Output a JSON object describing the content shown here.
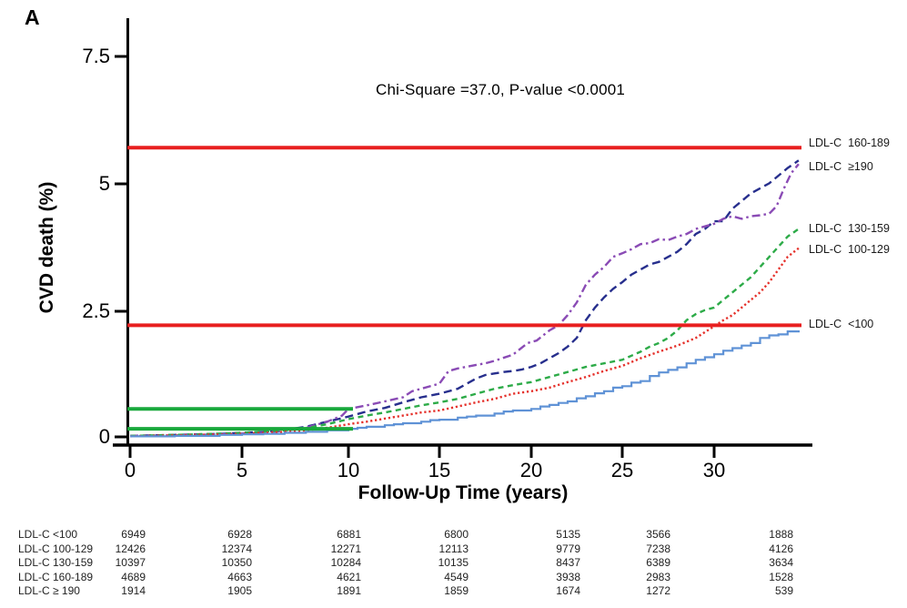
{
  "panel_label": "A",
  "annotation": "Chi-Square =37.0, P-value <0.0001",
  "axes": {
    "y": {
      "title": "CVD death (%)",
      "ticks": [
        "7.5",
        "5",
        "2.5",
        "0"
      ],
      "tick_values": [
        7.5,
        5,
        2.5,
        0
      ]
    },
    "x": {
      "title": "Follow-Up Time (years)",
      "ticks": [
        "0",
        "5",
        "10",
        "15",
        "20",
        "25",
        "30"
      ],
      "tick_values": [
        0,
        5,
        10,
        15,
        20,
        25,
        30
      ]
    }
  },
  "curve_end_labels": [
    "LDL-C  160-189",
    "LDL-C  ≥190",
    "LDL-C  130-159",
    "LDL-C  100-129",
    "LDL-C  <100"
  ],
  "chart_data": {
    "type": "line",
    "title": "",
    "xlabel": "Follow-Up Time (years)",
    "ylabel": "CVD death (%)",
    "ylim": [
      0,
      7.5
    ],
    "x_ticks": [
      0,
      5,
      10,
      15,
      20,
      25,
      30
    ],
    "grid": false,
    "legend_position": "right-of-curve-ends",
    "annotation": "Chi-Square =37.0, P-value <0.0001",
    "series": [
      {
        "name": "LDL-C 160-189",
        "color": "#272f8d",
        "style": "dashed",
        "step": false,
        "points": [
          [
            0,
            0.02
          ],
          [
            2,
            0.04
          ],
          [
            4,
            0.06
          ],
          [
            6,
            0.1
          ],
          [
            7,
            0.14
          ],
          [
            8,
            0.2
          ],
          [
            9,
            0.3
          ],
          [
            10,
            0.4
          ],
          [
            11,
            0.5
          ],
          [
            12,
            0.57
          ],
          [
            13,
            0.68
          ],
          [
            14,
            0.78
          ],
          [
            15,
            0.85
          ],
          [
            16,
            0.95
          ],
          [
            16.5,
            1.05
          ],
          [
            17,
            1.15
          ],
          [
            17.5,
            1.22
          ],
          [
            18,
            1.25
          ],
          [
            18.5,
            1.28
          ],
          [
            19,
            1.3
          ],
          [
            19.5,
            1.33
          ],
          [
            20,
            1.38
          ],
          [
            20.5,
            1.45
          ],
          [
            21,
            1.55
          ],
          [
            21.5,
            1.65
          ],
          [
            22,
            1.78
          ],
          [
            22.5,
            1.95
          ],
          [
            23,
            2.3
          ],
          [
            23.5,
            2.55
          ],
          [
            24,
            2.75
          ],
          [
            24.5,
            2.92
          ],
          [
            25,
            3.05
          ],
          [
            25.5,
            3.2
          ],
          [
            26,
            3.3
          ],
          [
            26.5,
            3.4
          ],
          [
            27,
            3.45
          ],
          [
            27.5,
            3.55
          ],
          [
            28,
            3.65
          ],
          [
            28.5,
            3.8
          ],
          [
            29,
            4.0
          ],
          [
            29.5,
            4.1
          ],
          [
            30,
            4.25
          ],
          [
            30.5,
            4.25
          ],
          [
            31,
            4.5
          ],
          [
            31.5,
            4.65
          ],
          [
            32,
            4.8
          ],
          [
            32.5,
            4.9
          ],
          [
            33,
            5.0
          ],
          [
            33.5,
            5.15
          ],
          [
            34,
            5.3
          ],
          [
            34.6,
            5.45
          ]
        ]
      },
      {
        "name": "LDL-C ≥190",
        "color": "#8a4bb5",
        "style": "dashdot",
        "step": false,
        "points": [
          [
            0,
            0.02
          ],
          [
            2,
            0.03
          ],
          [
            4,
            0.05
          ],
          [
            6,
            0.08
          ],
          [
            7,
            0.12
          ],
          [
            8,
            0.18
          ],
          [
            9,
            0.3
          ],
          [
            9.7,
            0.42
          ],
          [
            10,
            0.55
          ],
          [
            11,
            0.62
          ],
          [
            12,
            0.7
          ],
          [
            13,
            0.78
          ],
          [
            13.5,
            0.9
          ],
          [
            14,
            0.95
          ],
          [
            15,
            1.05
          ],
          [
            15.5,
            1.3
          ],
          [
            16,
            1.35
          ],
          [
            17,
            1.42
          ],
          [
            17.5,
            1.45
          ],
          [
            18,
            1.5
          ],
          [
            19,
            1.62
          ],
          [
            19.8,
            1.85
          ],
          [
            20.3,
            1.9
          ],
          [
            21,
            2.1
          ],
          [
            21.5,
            2.2
          ],
          [
            22,
            2.4
          ],
          [
            22.5,
            2.65
          ],
          [
            23,
            3.0
          ],
          [
            23.5,
            3.2
          ],
          [
            24,
            3.35
          ],
          [
            24.5,
            3.55
          ],
          [
            25,
            3.62
          ],
          [
            25.5,
            3.7
          ],
          [
            26,
            3.8
          ],
          [
            26.5,
            3.82
          ],
          [
            27,
            3.9
          ],
          [
            27.5,
            3.88
          ],
          [
            28,
            3.95
          ],
          [
            28.5,
            4.0
          ],
          [
            29,
            4.1
          ],
          [
            29.5,
            4.15
          ],
          [
            30,
            4.2
          ],
          [
            30.5,
            4.3
          ],
          [
            31,
            4.35
          ],
          [
            31.5,
            4.3
          ],
          [
            32,
            4.35
          ],
          [
            32.5,
            4.37
          ],
          [
            33,
            4.4
          ],
          [
            33.4,
            4.55
          ],
          [
            33.8,
            4.9
          ],
          [
            34.2,
            5.2
          ],
          [
            34.6,
            5.38
          ]
        ]
      },
      {
        "name": "LDL-C 130-159",
        "color": "#2dab48",
        "style": "dashed-short",
        "step": false,
        "points": [
          [
            0,
            0.02
          ],
          [
            3,
            0.05
          ],
          [
            5,
            0.08
          ],
          [
            7,
            0.13
          ],
          [
            8,
            0.17
          ],
          [
            9,
            0.25
          ],
          [
            10,
            0.35
          ],
          [
            11,
            0.42
          ],
          [
            12,
            0.48
          ],
          [
            13,
            0.55
          ],
          [
            14,
            0.62
          ],
          [
            15,
            0.68
          ],
          [
            16,
            0.75
          ],
          [
            17,
            0.85
          ],
          [
            18,
            0.95
          ],
          [
            19,
            1.02
          ],
          [
            20,
            1.08
          ],
          [
            21,
            1.18
          ],
          [
            22,
            1.28
          ],
          [
            23,
            1.38
          ],
          [
            24,
            1.45
          ],
          [
            25,
            1.52
          ],
          [
            25.5,
            1.6
          ],
          [
            26,
            1.68
          ],
          [
            26.5,
            1.78
          ],
          [
            27,
            1.85
          ],
          [
            27.5,
            1.95
          ],
          [
            28,
            2.1
          ],
          [
            28.5,
            2.3
          ],
          [
            29,
            2.42
          ],
          [
            29.5,
            2.5
          ],
          [
            30,
            2.55
          ],
          [
            30.5,
            2.7
          ],
          [
            31,
            2.85
          ],
          [
            31.5,
            3.0
          ],
          [
            32,
            3.15
          ],
          [
            32.5,
            3.35
          ],
          [
            33,
            3.55
          ],
          [
            33.5,
            3.75
          ],
          [
            34,
            3.95
          ],
          [
            34.6,
            4.1
          ]
        ]
      },
      {
        "name": "LDL-C 100-129",
        "color": "#e5302a",
        "style": "dotted",
        "step": false,
        "points": [
          [
            0,
            0.01
          ],
          [
            3,
            0.04
          ],
          [
            5,
            0.06
          ],
          [
            7,
            0.1
          ],
          [
            8,
            0.13
          ],
          [
            9,
            0.18
          ],
          [
            10,
            0.25
          ],
          [
            11,
            0.3
          ],
          [
            12,
            0.36
          ],
          [
            13,
            0.42
          ],
          [
            14,
            0.48
          ],
          [
            15,
            0.52
          ],
          [
            16,
            0.6
          ],
          [
            17,
            0.68
          ],
          [
            18,
            0.75
          ],
          [
            19,
            0.85
          ],
          [
            20,
            0.9
          ],
          [
            21,
            0.97
          ],
          [
            22,
            1.08
          ],
          [
            23,
            1.18
          ],
          [
            24,
            1.3
          ],
          [
            25,
            1.4
          ],
          [
            26,
            1.55
          ],
          [
            27,
            1.68
          ],
          [
            28,
            1.8
          ],
          [
            29,
            1.95
          ],
          [
            30,
            2.18
          ],
          [
            30.5,
            2.3
          ],
          [
            31,
            2.4
          ],
          [
            31.5,
            2.55
          ],
          [
            32,
            2.7
          ],
          [
            32.5,
            2.85
          ],
          [
            33,
            3.05
          ],
          [
            33.5,
            3.3
          ],
          [
            34,
            3.55
          ],
          [
            34.6,
            3.72
          ]
        ]
      },
      {
        "name": "LDL-C <100",
        "color": "#5f92d6",
        "style": "solid",
        "step": true,
        "points": [
          [
            0,
            0.01
          ],
          [
            2,
            0.02
          ],
          [
            4,
            0.04
          ],
          [
            5,
            0.05
          ],
          [
            6,
            0.06
          ],
          [
            7,
            0.08
          ],
          [
            8,
            0.1
          ],
          [
            9,
            0.13
          ],
          [
            10,
            0.16
          ],
          [
            10.5,
            0.18
          ],
          [
            11,
            0.2
          ],
          [
            12,
            0.23
          ],
          [
            12.5,
            0.25
          ],
          [
            13,
            0.27
          ],
          [
            14,
            0.3
          ],
          [
            14.5,
            0.33
          ],
          [
            15,
            0.34
          ],
          [
            16,
            0.38
          ],
          [
            16.5,
            0.4
          ],
          [
            17,
            0.42
          ],
          [
            18,
            0.46
          ],
          [
            18.5,
            0.5
          ],
          [
            19,
            0.52
          ],
          [
            20,
            0.55
          ],
          [
            20.5,
            0.6
          ],
          [
            21,
            0.63
          ],
          [
            21.5,
            0.67
          ],
          [
            22,
            0.7
          ],
          [
            22.5,
            0.76
          ],
          [
            23,
            0.8
          ],
          [
            23.5,
            0.86
          ],
          [
            24,
            0.9
          ],
          [
            24.5,
            0.97
          ],
          [
            25,
            1.0
          ],
          [
            25.5,
            1.07
          ],
          [
            26,
            1.1
          ],
          [
            26.5,
            1.2
          ],
          [
            27,
            1.27
          ],
          [
            27.5,
            1.32
          ],
          [
            28,
            1.37
          ],
          [
            28.5,
            1.45
          ],
          [
            29,
            1.52
          ],
          [
            29.5,
            1.57
          ],
          [
            30,
            1.63
          ],
          [
            30.5,
            1.7
          ],
          [
            31,
            1.75
          ],
          [
            31.5,
            1.8
          ],
          [
            32,
            1.85
          ],
          [
            32.5,
            1.95
          ],
          [
            33,
            2.0
          ],
          [
            33.5,
            2.02
          ],
          [
            34,
            2.08
          ],
          [
            34.6,
            2.1
          ]
        ]
      }
    ],
    "reference_lines": [
      {
        "value": 5.7,
        "x_start": 0,
        "x_end": 34.75,
        "color": "#e81f1f",
        "width": 4
      },
      {
        "value": 2.2,
        "x_start": 0,
        "x_end": 34.75,
        "color": "#e81f1f",
        "width": 4
      },
      {
        "value": 0.55,
        "x_start": 0,
        "x_end": 10.25,
        "color": "#19a83c",
        "width": 4
      },
      {
        "value": 0.16,
        "x_start": 0,
        "x_end": 10.25,
        "color": "#19a83c",
        "width": 4
      }
    ],
    "risk_table": {
      "rows": [
        {
          "label": "LDL-C <100",
          "values": [
            6949,
            6928,
            6881,
            6800,
            5135,
            3566,
            1888
          ]
        },
        {
          "label": "LDL-C 100-129",
          "values": [
            12426,
            12374,
            12271,
            12113,
            9779,
            7238,
            4126
          ]
        },
        {
          "label": "LDL-C 130-159",
          "values": [
            10397,
            10350,
            10284,
            10135,
            8437,
            6389,
            3634
          ]
        },
        {
          "label": "LDL-C 160-189",
          "values": [
            4689,
            4663,
            4621,
            4549,
            3938,
            2983,
            1528
          ]
        },
        {
          "label": "LDL-C ≥ 190",
          "values": [
            1914,
            1905,
            1891,
            1859,
            1674,
            1272,
            539
          ]
        }
      ]
    }
  }
}
